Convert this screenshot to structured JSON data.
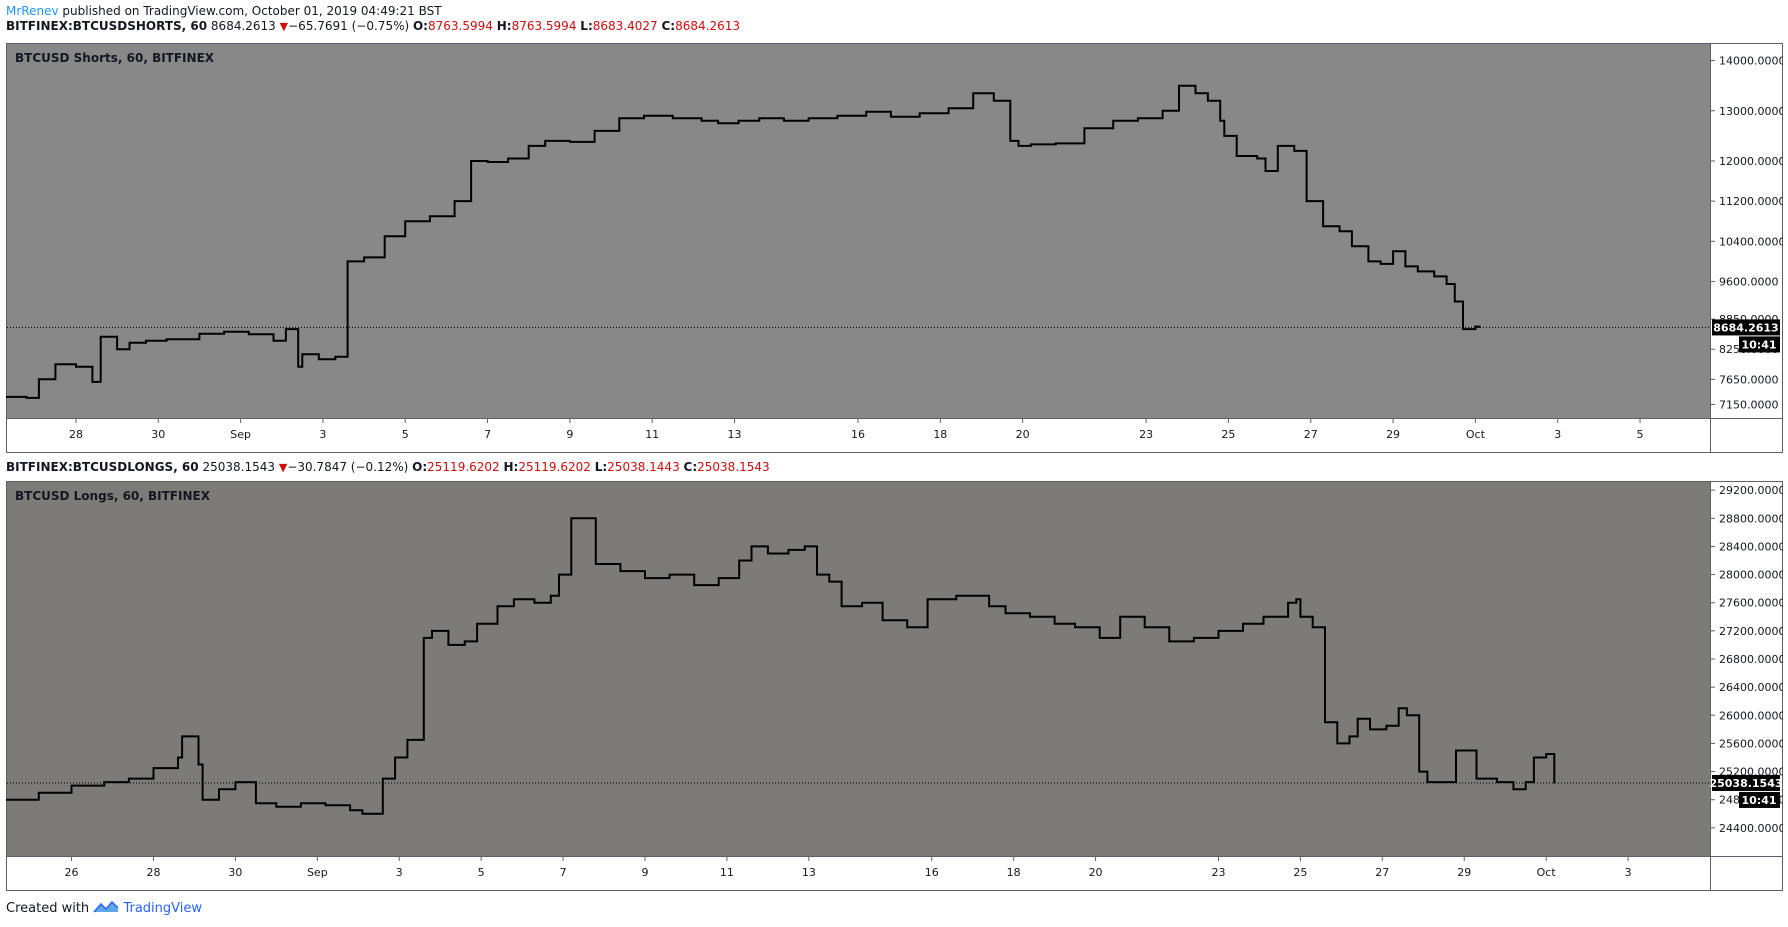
{
  "header": {
    "author": "MrRenev",
    "published_text": "published on TradingView.com, October 01, 2019 04:49:21 BST"
  },
  "footer": {
    "created_with": "Created with",
    "brand": "TradingView"
  },
  "colors": {
    "panel_top": "#888888",
    "panel_bottom": "#7d7b77",
    "line": "#000000",
    "negative": "#d00d0d",
    "author": "#2196f3"
  },
  "chart_data": [
    {
      "type": "line",
      "symbol_line": {
        "symbol": "BITFINEX:BTCUSDSHORTS, 60",
        "last": "8684.2613",
        "change": "−65.7691 (−0.75%)",
        "o_label": "O:",
        "o": "8763.5994",
        "h_label": "H:",
        "h": "8763.5994",
        "l_label": "L:",
        "l": "8683.4027",
        "c_label": "C:",
        "c": "8684.2613"
      },
      "title": "BTCUSD Shorts, 60, BITFINEX",
      "price_label": "8684.2613",
      "countdown": "10:41",
      "last_value": 8684.2613,
      "ylim": [
        6880,
        14350
      ],
      "y_ticks": [
        {
          "v": 14000,
          "label": "14000.0000"
        },
        {
          "v": 13000,
          "label": "13000.0000"
        },
        {
          "v": 12000,
          "label": "12000.0000"
        },
        {
          "v": 11200,
          "label": "11200.0000"
        },
        {
          "v": 10400,
          "label": "10400.0000"
        },
        {
          "v": 9600,
          "label": "9600.0000"
        },
        {
          "v": 8850,
          "label": "8850.0000"
        },
        {
          "v": 8250,
          "label": "8250.0000"
        },
        {
          "v": 7650,
          "label": "7650.0000"
        },
        {
          "v": 7150,
          "label": "7150.0000"
        }
      ],
      "xlim": [
        -0.7,
        40.7
      ],
      "x_ticks": [
        {
          "x": 1,
          "label": "28"
        },
        {
          "x": 3,
          "label": "30"
        },
        {
          "x": 5,
          "label": "Sep"
        },
        {
          "x": 7,
          "label": "3"
        },
        {
          "x": 9,
          "label": "5"
        },
        {
          "x": 11,
          "label": "7"
        },
        {
          "x": 13,
          "label": "9"
        },
        {
          "x": 15,
          "label": "11"
        },
        {
          "x": 17,
          "label": "13"
        },
        {
          "x": 20,
          "label": "16"
        },
        {
          "x": 22,
          "label": "18"
        },
        {
          "x": 24,
          "label": "20"
        },
        {
          "x": 27,
          "label": "23"
        },
        {
          "x": 29,
          "label": "25"
        },
        {
          "x": 31,
          "label": "27"
        },
        {
          "x": 33,
          "label": "29"
        },
        {
          "x": 35,
          "label": "Oct"
        },
        {
          "x": 37,
          "label": "3"
        },
        {
          "x": 39,
          "label": "5"
        }
      ],
      "x": [
        -0.7,
        -0.2,
        0.1,
        0.5,
        1.0,
        1.4,
        1.6,
        2.0,
        2.3,
        2.7,
        3.2,
        4.0,
        4.6,
        5.2,
        5.8,
        6.1,
        6.4,
        6.5,
        6.9,
        7.3,
        7.6,
        8.0,
        8.5,
        9.0,
        9.6,
        10.2,
        10.6,
        11.0,
        11.5,
        12.0,
        12.4,
        13.0,
        13.6,
        14.2,
        14.8,
        15.5,
        16.2,
        16.6,
        17.1,
        17.6,
        18.2,
        18.8,
        19.5,
        20.2,
        20.8,
        21.5,
        22.2,
        22.8,
        23.3,
        23.7,
        23.9,
        24.2,
        24.8,
        25.5,
        26.2,
        26.8,
        27.4,
        27.8,
        28.2,
        28.5,
        28.8,
        28.9,
        29.2,
        29.7,
        29.9,
        30.2,
        30.6,
        30.9,
        31.3,
        31.7,
        32.0,
        32.4,
        32.7,
        33.0,
        33.3,
        33.6,
        34.0,
        34.3,
        34.5,
        34.7,
        35.0,
        35.1
      ],
      "y": [
        7300,
        7280,
        7650,
        7950,
        7900,
        7600,
        8500,
        8250,
        8380,
        8420,
        8450,
        8560,
        8600,
        8550,
        8420,
        8650,
        7900,
        8150,
        8050,
        8100,
        10000,
        10080,
        10500,
        10800,
        10900,
        11200,
        12000,
        11980,
        12050,
        12300,
        12400,
        12380,
        12600,
        12850,
        12900,
        12850,
        12800,
        12750,
        12800,
        12850,
        12800,
        12850,
        12900,
        12980,
        12880,
        12950,
        13050,
        13350,
        13200,
        12400,
        12300,
        12330,
        12350,
        12650,
        12800,
        12850,
        13000,
        13500,
        13350,
        13200,
        12800,
        12500,
        12100,
        12050,
        11800,
        12300,
        12200,
        11200,
        10700,
        10600,
        10300,
        10000,
        9950,
        10200,
        9900,
        9800,
        9700,
        9550,
        9200,
        8650,
        8700,
        8684
      ]
    },
    {
      "type": "line",
      "symbol_line": {
        "symbol": "BITFINEX:BTCUSDLONGS, 60",
        "last": "25038.1543",
        "change": "−30.7847 (−0.12%)",
        "o_label": "O:",
        "o": "25119.6202",
        "h_label": "H:",
        "h": "25119.6202",
        "l_label": "L:",
        "l": "25038.1443",
        "c_label": "C:",
        "c": "25038.1543"
      },
      "title": "BTCUSD Longs, 60, BITFINEX",
      "price_label": "25038.1543",
      "countdown": "10:41",
      "last_value": 25038.1543,
      "ylim": [
        24000,
        29330
      ],
      "y_ticks": [
        {
          "v": 29200,
          "label": "29200.0000"
        },
        {
          "v": 28800,
          "label": "28800.0000"
        },
        {
          "v": 28400,
          "label": "28400.0000"
        },
        {
          "v": 28000,
          "label": "28000.0000"
        },
        {
          "v": 27600,
          "label": "27600.0000"
        },
        {
          "v": 27200,
          "label": "27200.0000"
        },
        {
          "v": 26800,
          "label": "26800.0000"
        },
        {
          "v": 26400,
          "label": "26400.0000"
        },
        {
          "v": 26000,
          "label": "26000.0000"
        },
        {
          "v": 25600,
          "label": "25600.0000"
        },
        {
          "v": 25200,
          "label": "25200.0000"
        },
        {
          "v": 24800,
          "label": "24800.0000"
        },
        {
          "v": 24400,
          "label": "24400.0000"
        }
      ],
      "xlim": [
        -1.6,
        40.0
      ],
      "x_ticks": [
        {
          "x": 0,
          "label": "26"
        },
        {
          "x": 2,
          "label": "28"
        },
        {
          "x": 4,
          "label": "30"
        },
        {
          "x": 6,
          "label": "Sep"
        },
        {
          "x": 8,
          "label": "3"
        },
        {
          "x": 10,
          "label": "5"
        },
        {
          "x": 12,
          "label": "7"
        },
        {
          "x": 14,
          "label": "9"
        },
        {
          "x": 16,
          "label": "11"
        },
        {
          "x": 18,
          "label": "13"
        },
        {
          "x": 21,
          "label": "16"
        },
        {
          "x": 23,
          "label": "18"
        },
        {
          "x": 25,
          "label": "20"
        },
        {
          "x": 28,
          "label": "23"
        },
        {
          "x": 30,
          "label": "25"
        },
        {
          "x": 32,
          "label": "27"
        },
        {
          "x": 34,
          "label": "29"
        },
        {
          "x": 36,
          "label": "Oct"
        },
        {
          "x": 38,
          "label": "3"
        }
      ],
      "x": [
        -1.6,
        -0.8,
        0.0,
        0.8,
        1.4,
        2.0,
        2.6,
        2.7,
        3.1,
        3.2,
        3.6,
        4.0,
        4.5,
        5.0,
        5.6,
        6.2,
        6.8,
        7.1,
        7.6,
        7.9,
        8.2,
        8.6,
        8.8,
        9.2,
        9.6,
        9.9,
        10.4,
        10.8,
        11.3,
        11.7,
        11.9,
        12.2,
        12.8,
        13.4,
        14.0,
        14.6,
        15.2,
        15.8,
        16.3,
        16.6,
        17.0,
        17.5,
        17.9,
        18.2,
        18.5,
        18.8,
        19.3,
        19.8,
        20.4,
        20.9,
        21.6,
        22.4,
        22.8,
        23.4,
        24.0,
        24.5,
        25.1,
        25.6,
        26.2,
        26.8,
        27.4,
        28.0,
        28.6,
        29.1,
        29.7,
        29.9,
        30.0,
        30.3,
        30.6,
        30.9,
        31.2,
        31.4,
        31.7,
        32.1,
        32.4,
        32.6,
        32.9,
        33.1,
        33.4,
        33.8,
        34.3,
        34.8,
        35.2,
        35.5,
        35.7,
        36.0,
        36.2
      ],
      "y": [
        24800,
        24900,
        25000,
        25050,
        25100,
        25250,
        25400,
        25700,
        25300,
        24800,
        24950,
        25050,
        24750,
        24700,
        24750,
        24720,
        24650,
        24600,
        25100,
        25400,
        25650,
        27100,
        27200,
        27000,
        27050,
        27300,
        27550,
        27650,
        27600,
        27700,
        28000,
        28800,
        28150,
        28050,
        27950,
        28000,
        27850,
        27950,
        28200,
        28400,
        28300,
        28350,
        28400,
        28000,
        27900,
        27550,
        27600,
        27350,
        27250,
        27650,
        27700,
        27550,
        27450,
        27400,
        27300,
        27250,
        27100,
        27400,
        27250,
        27050,
        27100,
        27200,
        27300,
        27400,
        27600,
        27650,
        27400,
        27250,
        25900,
        25600,
        25700,
        25950,
        25800,
        25850,
        26100,
        26000,
        25200,
        25050,
        25050,
        25500,
        25100,
        25050,
        24950,
        25050,
        25400,
        25450,
        25038
      ]
    }
  ]
}
